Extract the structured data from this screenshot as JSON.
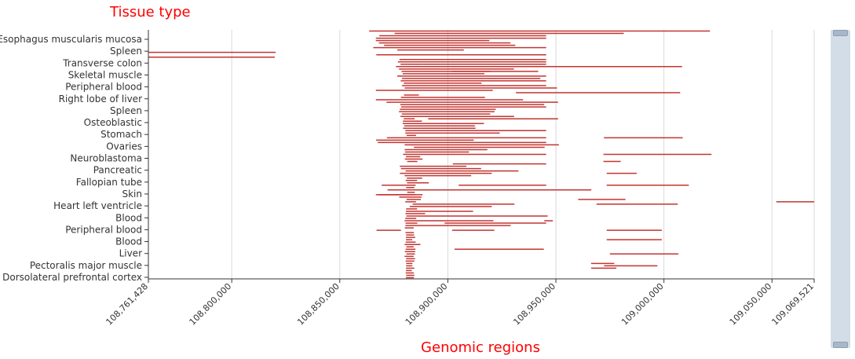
{
  "chart_data": {
    "type": "interval",
    "title": "Tissue type",
    "xlabel": "Genomic regions",
    "ylabel": "",
    "xlim": [
      108761428,
      109069521
    ],
    "x_ticks": [
      "108,761,428",
      "108,800,000",
      "108,850,000",
      "108,900,000",
      "108,950,000",
      "109,000,000",
      "109,050,000",
      "109,069,521"
    ],
    "x_tick_values": [
      108761428,
      108800000,
      108850000,
      108900000,
      108950000,
      109000000,
      109050000,
      109069521
    ],
    "y_ticks": [
      "Esophagus muscularis mucosa",
      "Spleen",
      "Transverse colon",
      "Skeletal muscle",
      "Peripheral blood",
      "Right lobe of liver",
      "Spleen",
      "Osteoblastic",
      "Stomach",
      "Ovaries",
      "Neuroblastoma",
      "Pancreatic",
      "Fallopian tube",
      "Skin",
      "Heart left ventricle",
      "Blood",
      "Peripheral blood",
      "Blood",
      "Liver",
      "Pectoralis major muscle",
      "Dorsolateral prefrontal cortex"
    ],
    "grid": true,
    "legend": "none",
    "color": "#c23531",
    "row_count": 105,
    "intervals": [
      [
        1,
        108863600,
        109021300
      ],
      [
        2,
        108875400,
        108945500
      ],
      [
        2,
        108945500,
        108981400
      ],
      [
        3,
        108868300,
        108945500
      ],
      [
        4,
        108866700,
        108945500
      ],
      [
        5,
        108866700,
        108919200
      ],
      [
        6,
        108868100,
        108929000
      ],
      [
        7,
        108870500,
        108931200
      ],
      [
        8,
        108865500,
        108945500
      ],
      [
        9,
        108876600,
        108907400
      ],
      [
        10,
        108761428,
        108820300
      ],
      [
        11,
        108866900,
        108945500
      ],
      [
        12,
        108761428,
        108819900
      ],
      [
        13,
        108877600,
        108945500
      ],
      [
        14,
        108876900,
        108945500
      ],
      [
        15,
        108878100,
        108888300
      ],
      [
        15,
        108888300,
        108945500
      ],
      [
        16,
        108876000,
        108908400
      ],
      [
        16,
        108908400,
        109008400
      ],
      [
        17,
        108877400,
        108930600
      ],
      [
        18,
        108878600,
        108941800
      ],
      [
        18,
        108901900,
        108919800
      ],
      [
        19,
        108879100,
        108916900
      ],
      [
        20,
        108876600,
        108945500
      ],
      [
        21,
        108878800,
        108942800
      ],
      [
        22,
        108878200,
        108945500
      ],
      [
        23,
        108879600,
        108915600
      ],
      [
        24,
        108878800,
        108917700
      ],
      [
        24,
        108917700,
        108945500
      ],
      [
        25,
        108880000,
        108950500
      ],
      [
        26,
        108866700,
        108920800
      ],
      [
        27,
        108931500,
        109007500
      ],
      [
        28,
        108879700,
        108886600
      ],
      [
        29,
        108878300,
        108917200
      ],
      [
        30,
        108866700,
        108888000
      ],
      [
        30,
        108888000,
        108934800
      ],
      [
        31,
        108871600,
        108951000
      ],
      [
        32,
        108878000,
        108944600
      ],
      [
        33,
        108878400,
        108945500
      ],
      [
        34,
        108877800,
        108922200
      ],
      [
        35,
        108877400,
        108921600
      ],
      [
        36,
        108878700,
        108919600
      ],
      [
        37,
        108878100,
        108930700
      ],
      [
        38,
        108879600,
        108884600
      ],
      [
        38,
        108890900,
        108951000
      ],
      [
        39,
        108879200,
        108888000
      ],
      [
        40,
        108879100,
        108916700
      ],
      [
        41,
        108879800,
        108912500
      ],
      [
        42,
        108879300,
        108912800
      ],
      [
        43,
        108880300,
        108883600
      ],
      [
        43,
        108883600,
        108945500
      ],
      [
        44,
        108880300,
        108924000
      ],
      [
        45,
        108880900,
        108885300
      ],
      [
        46,
        108871800,
        108945500
      ],
      [
        46,
        108972200,
        109008700
      ],
      [
        47,
        108866800,
        108912000
      ],
      [
        48,
        108867600,
        108945500
      ],
      [
        49,
        108880000,
        108951400
      ],
      [
        50,
        108884300,
        108944800
      ],
      [
        51,
        108880000,
        108918300
      ],
      [
        52,
        108880200,
        108909800
      ],
      [
        53,
        108879300,
        108914800
      ],
      [
        53,
        108914800,
        108945500
      ],
      [
        54,
        108880600,
        108887200
      ],
      [
        55,
        108880100,
        108888300
      ],
      [
        56,
        108881200,
        108885900
      ],
      [
        57,
        108902300,
        108945500
      ],
      [
        58,
        108877800,
        108908600
      ],
      [
        59,
        108878300,
        108915400
      ],
      [
        60,
        108880400,
        108932700
      ],
      [
        61,
        108877800,
        108920300
      ],
      [
        62,
        108880000,
        108910800
      ],
      [
        63,
        108881000,
        108888100
      ],
      [
        64,
        108880500,
        108885800
      ],
      [
        65,
        108881100,
        108891200
      ],
      [
        66,
        108880700,
        108885100
      ],
      [
        67,
        108880700,
        108884500
      ],
      [
        68,
        108872100,
        108966400
      ],
      [
        69,
        108881200,
        108884700
      ],
      [
        70,
        108868100,
        108888300
      ],
      [
        71,
        108877500,
        108887800
      ],
      [
        72,
        108880900,
        108887500
      ],
      [
        73,
        108880300,
        108885300
      ],
      [
        74,
        108883700,
        108930800
      ],
      [
        75,
        108882400,
        108920300
      ],
      [
        76,
        108880700,
        108885800
      ],
      [
        77,
        108880600,
        108911700
      ],
      [
        78,
        108880400,
        108889500
      ],
      [
        79,
        108880800,
        108946200
      ],
      [
        80,
        108880300,
        108885400
      ],
      [
        81,
        108880000,
        108921100
      ],
      [
        82,
        108880400,
        108885900
      ],
      [
        83,
        108880400,
        108929100
      ],
      [
        84,
        108880100,
        108884200
      ],
      [
        85,
        108867000,
        108878300
      ],
      [
        86,
        108880400,
        108884300
      ],
      [
        87,
        108880700,
        108884400
      ],
      [
        88,
        108880600,
        108884900
      ],
      [
        89,
        108880600,
        108883500
      ],
      [
        90,
        108880500,
        108885100
      ],
      [
        91,
        108880000,
        108887300
      ],
      [
        92,
        108880800,
        108884200
      ],
      [
        93,
        108880500,
        108885000
      ],
      [
        94,
        108880100,
        108884900
      ],
      [
        95,
        108880800,
        108884800
      ],
      [
        96,
        108880000,
        108884200
      ],
      [
        97,
        108880700,
        108884800
      ],
      [
        98,
        108880500,
        108884500
      ],
      [
        99,
        108880700,
        108883600
      ],
      [
        100,
        108880700,
        108883600
      ],
      [
        101,
        108880600,
        108884500
      ],
      [
        102,
        108880600,
        108883300
      ],
      [
        103,
        108880500,
        108884300
      ],
      [
        104,
        108880700,
        108884500
      ],
      [
        105,
        108880600,
        108884300
      ],
      [
        53,
        108972000,
        109022000
      ],
      [
        56,
        108972000,
        108980000
      ],
      [
        61,
        108973500,
        108987400
      ],
      [
        66,
        108973500,
        109011500
      ],
      [
        72,
        108960300,
        108982200
      ],
      [
        74,
        108968800,
        109006400
      ],
      [
        81,
        108944600,
        108948600
      ],
      [
        85,
        108973500,
        108999000
      ],
      [
        89,
        108973500,
        108999000
      ],
      [
        95,
        108975000,
        109006700
      ],
      [
        99,
        108966300,
        108977000
      ],
      [
        100,
        108972300,
        108997000
      ],
      [
        101,
        108966300,
        108978000
      ],
      [
        73,
        109052000,
        109069521
      ],
      [
        66,
        108905000,
        108945500
      ],
      [
        82,
        108898500,
        108945500
      ],
      [
        85,
        108902000,
        108921500
      ],
      [
        93,
        108903100,
        108944400
      ],
      [
        66,
        108869400,
        108884200
      ],
      [
        70,
        108866700,
        108885000
      ]
    ]
  },
  "scrollbar": {
    "handle_glyph": "≡"
  }
}
